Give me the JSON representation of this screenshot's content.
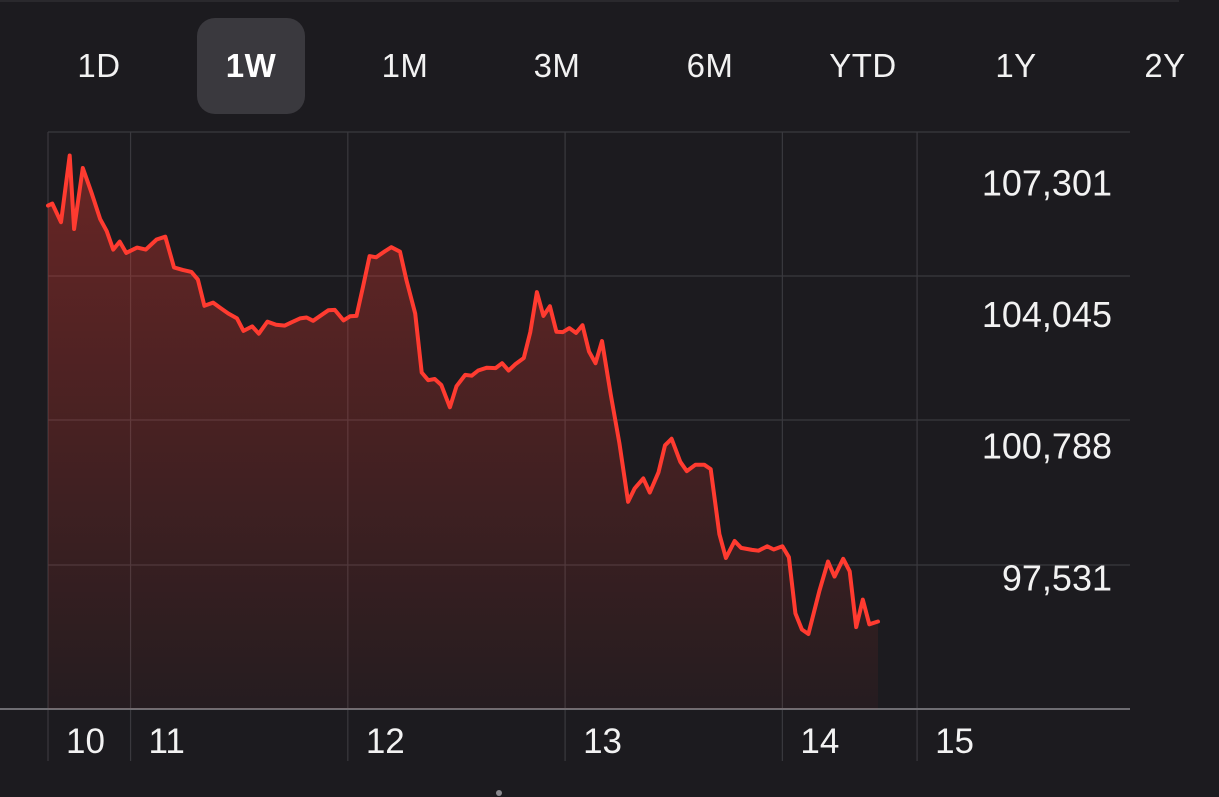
{
  "range_tabs": [
    {
      "label": "1D",
      "active": false
    },
    {
      "label": "1W",
      "active": true
    },
    {
      "label": "1M",
      "active": false
    },
    {
      "label": "3M",
      "active": false
    },
    {
      "label": "6M",
      "active": false
    },
    {
      "label": "YTD",
      "active": false
    },
    {
      "label": "1Y",
      "active": false
    },
    {
      "label": "2Y",
      "active": false
    }
  ],
  "colors": {
    "background": "#1c1b1f",
    "line": "#ff3b30",
    "grid": "#3a393e",
    "tab_active_bg": "#3a393e"
  },
  "chart_data": {
    "type": "area",
    "title": "",
    "xlabel": "",
    "ylabel": "",
    "x_ticks": [
      {
        "label": "10",
        "x": 10.0
      },
      {
        "label": "11",
        "x": 10.38
      },
      {
        "label": "12",
        "x": 11.38
      },
      {
        "label": "13",
        "x": 12.38
      },
      {
        "label": "14",
        "x": 13.38
      },
      {
        "label": "15",
        "x": 14.0
      }
    ],
    "y_ticks": [
      {
        "label": "107,301",
        "value": 107301
      },
      {
        "label": "104,045",
        "value": 104045
      },
      {
        "label": "100,788",
        "value": 100788
      },
      {
        "label": "97,531",
        "value": 97531
      }
    ],
    "xlim": [
      10.0,
      14.98
    ],
    "ylim": [
      94274,
      108551
    ],
    "grid": true,
    "series": [
      {
        "points": [
          [
            10.0,
            106730
          ],
          [
            10.02,
            106780
          ],
          [
            10.06,
            106320
          ],
          [
            10.1,
            107970
          ],
          [
            10.12,
            106150
          ],
          [
            10.16,
            107660
          ],
          [
            10.2,
            107050
          ],
          [
            10.24,
            106400
          ],
          [
            10.27,
            106100
          ],
          [
            10.3,
            105640
          ],
          [
            10.33,
            105840
          ],
          [
            10.36,
            105560
          ],
          [
            10.41,
            105690
          ],
          [
            10.45,
            105640
          ],
          [
            10.5,
            105890
          ],
          [
            10.54,
            105960
          ],
          [
            10.58,
            105200
          ],
          [
            10.62,
            105140
          ],
          [
            10.66,
            105090
          ],
          [
            10.69,
            104900
          ],
          [
            10.72,
            104250
          ],
          [
            10.76,
            104330
          ],
          [
            10.79,
            104210
          ],
          [
            10.83,
            104060
          ],
          [
            10.87,
            103940
          ],
          [
            10.9,
            103630
          ],
          [
            10.94,
            103740
          ],
          [
            10.97,
            103560
          ],
          [
            11.01,
            103860
          ],
          [
            11.05,
            103780
          ],
          [
            11.09,
            103760
          ],
          [
            11.12,
            103840
          ],
          [
            11.16,
            103940
          ],
          [
            11.19,
            103960
          ],
          [
            11.22,
            103880
          ],
          [
            11.25,
            103990
          ],
          [
            11.29,
            104140
          ],
          [
            11.32,
            104150
          ],
          [
            11.36,
            103890
          ],
          [
            11.39,
            103990
          ],
          [
            11.42,
            104000
          ],
          [
            11.45,
            104720
          ],
          [
            11.48,
            105480
          ],
          [
            11.51,
            105450
          ],
          [
            11.55,
            105600
          ],
          [
            11.58,
            105700
          ],
          [
            11.62,
            105590
          ],
          [
            11.65,
            104880
          ],
          [
            11.69,
            104060
          ],
          [
            11.72,
            102600
          ],
          [
            11.75,
            102410
          ],
          [
            11.78,
            102440
          ],
          [
            11.81,
            102290
          ],
          [
            11.85,
            101740
          ],
          [
            11.88,
            102260
          ],
          [
            11.92,
            102540
          ],
          [
            11.95,
            102520
          ],
          [
            11.98,
            102650
          ],
          [
            12.02,
            102720
          ],
          [
            12.06,
            102710
          ],
          [
            12.09,
            102830
          ],
          [
            12.12,
            102650
          ],
          [
            12.15,
            102800
          ],
          [
            12.19,
            102960
          ],
          [
            12.22,
            103600
          ],
          [
            12.25,
            104590
          ],
          [
            12.28,
            104000
          ],
          [
            12.31,
            104240
          ],
          [
            12.34,
            103610
          ],
          [
            12.37,
            103600
          ],
          [
            12.4,
            103700
          ],
          [
            12.43,
            103580
          ],
          [
            12.46,
            103770
          ],
          [
            12.49,
            103120
          ],
          [
            12.52,
            102830
          ],
          [
            12.55,
            103380
          ],
          [
            12.59,
            102060
          ],
          [
            12.63,
            100850
          ],
          [
            12.67,
            99400
          ],
          [
            12.7,
            99730
          ],
          [
            12.74,
            99980
          ],
          [
            12.77,
            99630
          ],
          [
            12.81,
            100130
          ],
          [
            12.84,
            100800
          ],
          [
            12.87,
            100960
          ],
          [
            12.91,
            100390
          ],
          [
            12.94,
            100160
          ],
          [
            12.98,
            100320
          ],
          [
            13.02,
            100320
          ],
          [
            13.05,
            100210
          ],
          [
            13.09,
            98600
          ],
          [
            13.12,
            98010
          ],
          [
            13.16,
            98430
          ],
          [
            13.19,
            98260
          ],
          [
            13.24,
            98210
          ],
          [
            13.27,
            98190
          ],
          [
            13.31,
            98300
          ],
          [
            13.34,
            98220
          ],
          [
            13.38,
            98300
          ],
          [
            13.41,
            98030
          ],
          [
            13.44,
            96640
          ],
          [
            13.47,
            96240
          ],
          [
            13.5,
            96130
          ],
          [
            13.55,
            97190
          ],
          [
            13.59,
            97920
          ],
          [
            13.62,
            97550
          ],
          [
            13.66,
            97990
          ],
          [
            13.69,
            97680
          ],
          [
            13.72,
            96300
          ],
          [
            13.75,
            96980
          ],
          [
            13.78,
            96370
          ],
          [
            13.82,
            96440
          ]
        ]
      }
    ]
  }
}
